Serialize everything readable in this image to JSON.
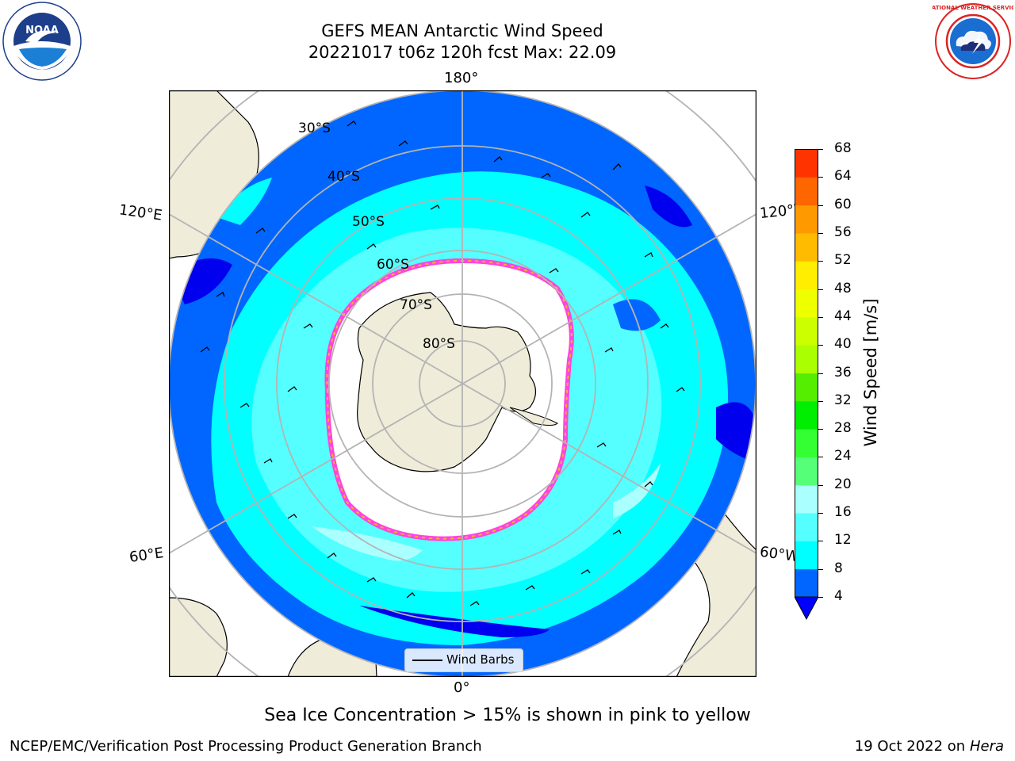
{
  "header": {
    "title_line1": "GEFS MEAN Antarctic Wind Speed",
    "title_line2": "20221017 t06z 120h fcst   Max: 22.09"
  },
  "logos": {
    "noaa_text": "NOAA",
    "nws_text": "NATIONAL WEATHER SERVICE"
  },
  "map": {
    "projection": "south-polar-stereographic",
    "longitude_labels": {
      "top": "180°",
      "bottom": "0°",
      "upper_left": "120°E",
      "upper_right": "120°W",
      "lower_left": "60°E",
      "lower_right": "60°W"
    },
    "latitude_labels": [
      "30°S",
      "40°S",
      "50°S",
      "60°S",
      "70°S",
      "80°S"
    ],
    "legend_label": "Wind Barbs",
    "colors": {
      "land": "#efecd9",
      "ice_edge": "#ff44dd",
      "ice_edge_inner": "#f8b030",
      "grid": "#b4b4b4"
    }
  },
  "colorbar": {
    "label": "Wind Speed [m/s]",
    "ticks": [
      "4",
      "8",
      "12",
      "16",
      "20",
      "24",
      "28",
      "32",
      "36",
      "40",
      "44",
      "48",
      "52",
      "56",
      "60",
      "64",
      "68"
    ],
    "colors": [
      "#0066ff",
      "#00ffff",
      "#55ffff",
      "#aaffff",
      "#55ff77",
      "#33ff33",
      "#00ee00",
      "#55ee00",
      "#aaff00",
      "#ccff00",
      "#eeff00",
      "#ffee00",
      "#ffbb00",
      "#ff9900",
      "#ff6600",
      "#ff3300",
      "#ff0000"
    ],
    "extend_color": "#0000ff"
  },
  "footer": {
    "note": "Sea Ice Concentration > 15% is shown in pink to yellow",
    "left": "NCEP/EMC/Verification Post Processing Product Generation Branch",
    "right_date": "19 Oct 2022 on ",
    "right_host": "Hera"
  }
}
